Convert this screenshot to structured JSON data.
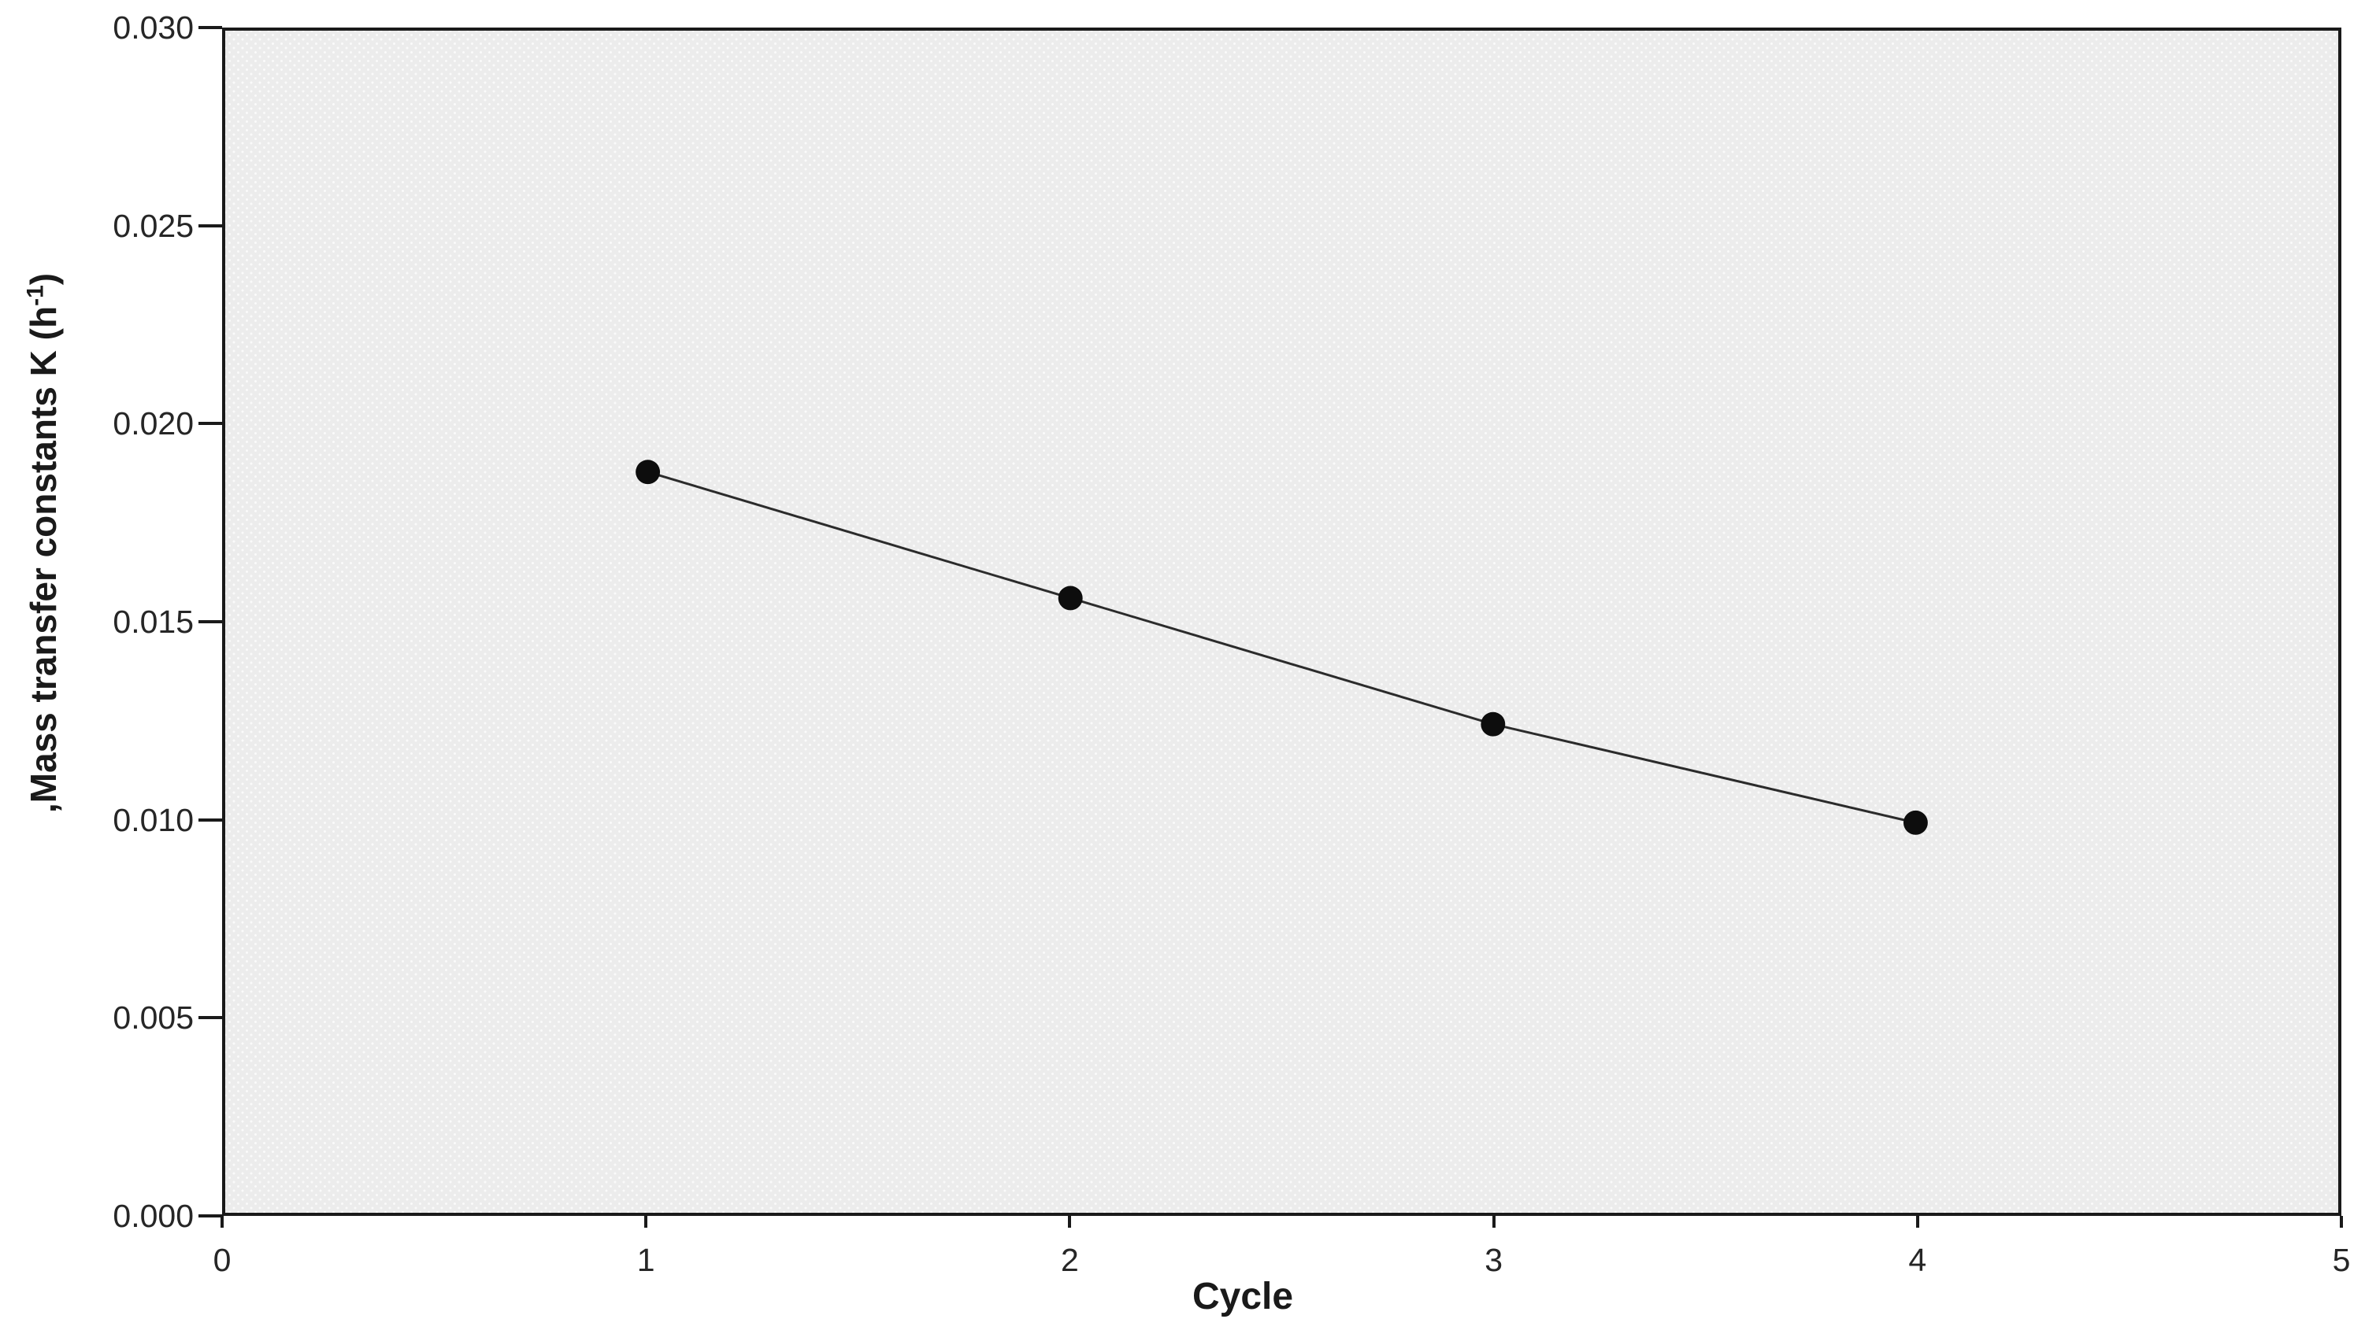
{
  "chart_data": {
    "type": "line",
    "title": "",
    "xlabel": "Cycle",
    "ylabel_prefix": ",Mass transfer constants K (h",
    "ylabel_sup": "-1",
    "ylabel_suffix": ")",
    "series": [
      {
        "name": "Mass transfer constants K",
        "x": [
          1,
          2,
          3,
          4
        ],
        "values": [
          0.0188,
          0.0156,
          0.0124,
          0.0099
        ],
        "marker": "filled-circle",
        "line_color": "#2b2b2b",
        "marker_color": "#0d0d0d"
      }
    ],
    "xlim": [
      0,
      5
    ],
    "ylim": [
      0.0,
      0.03
    ],
    "x_ticks": [
      {
        "value": 0,
        "label": "0"
      },
      {
        "value": 1,
        "label": "1"
      },
      {
        "value": 2,
        "label": "2"
      },
      {
        "value": 3,
        "label": "3"
      },
      {
        "value": 4,
        "label": "4"
      },
      {
        "value": 5,
        "label": "5"
      }
    ],
    "y_ticks": [
      {
        "value": 0.0,
        "label": "0.000"
      },
      {
        "value": 0.005,
        "label": "0.005"
      },
      {
        "value": 0.01,
        "label": "0.010"
      },
      {
        "value": 0.015,
        "label": "0.015"
      },
      {
        "value": 0.02,
        "label": "0.020"
      },
      {
        "value": 0.025,
        "label": "0.025"
      },
      {
        "value": 0.03,
        "label": "0.030"
      }
    ],
    "grid": "off",
    "legend": "none",
    "plot_area_fill": "#ececec",
    "axis_color": "#1a1a1a",
    "tick_label_color": "#262626"
  }
}
